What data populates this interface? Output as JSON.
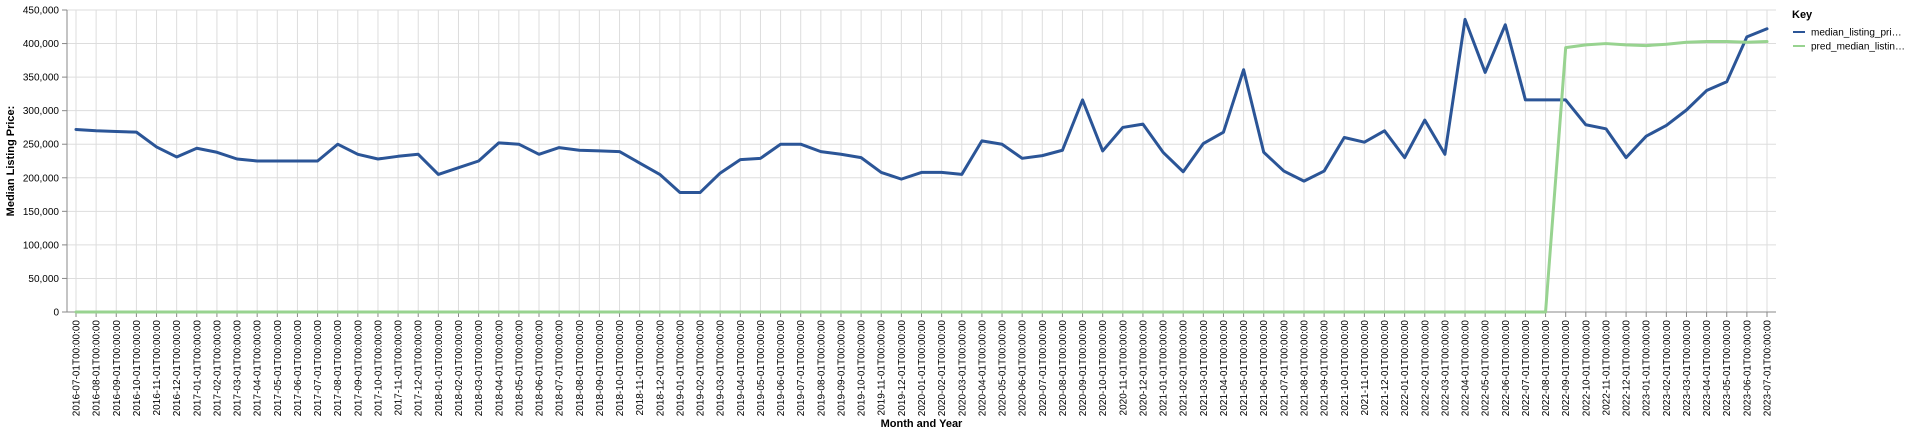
{
  "chart_data": {
    "type": "line",
    "xlabel": "Month and Year",
    "ylabel": "Median Listing Price:",
    "ylim": [
      0,
      450000
    ],
    "y_ticks": [
      0,
      50000,
      100000,
      150000,
      200000,
      250000,
      300000,
      350000,
      400000,
      450000
    ],
    "y_tick_labels": [
      "0",
      "50,000",
      "100,000",
      "150,000",
      "200,000",
      "250,000",
      "300,000",
      "350,000",
      "400,000",
      "450,000"
    ],
    "grid": true,
    "legend": {
      "title": "Key",
      "placement": "top-right"
    },
    "x": [
      "2016-07-01T00:00:00",
      "2016-08-01T00:00:00",
      "2016-09-01T00:00:00",
      "2016-10-01T00:00:00",
      "2016-11-01T00:00:00",
      "2016-12-01T00:00:00",
      "2017-01-01T00:00:00",
      "2017-02-01T00:00:00",
      "2017-03-01T00:00:00",
      "2017-04-01T00:00:00",
      "2017-05-01T00:00:00",
      "2017-06-01T00:00:00",
      "2017-07-01T00:00:00",
      "2017-08-01T00:00:00",
      "2017-09-01T00:00:00",
      "2017-10-01T00:00:00",
      "2017-11-01T00:00:00",
      "2017-12-01T00:00:00",
      "2018-01-01T00:00:00",
      "2018-02-01T00:00:00",
      "2018-03-01T00:00:00",
      "2018-04-01T00:00:00",
      "2018-05-01T00:00:00",
      "2018-06-01T00:00:00",
      "2018-07-01T00:00:00",
      "2018-08-01T00:00:00",
      "2018-09-01T00:00:00",
      "2018-10-01T00:00:00",
      "2018-11-01T00:00:00",
      "2018-12-01T00:00:00",
      "2019-01-01T00:00:00",
      "2019-02-01T00:00:00",
      "2019-03-01T00:00:00",
      "2019-04-01T00:00:00",
      "2019-05-01T00:00:00",
      "2019-06-01T00:00:00",
      "2019-07-01T00:00:00",
      "2019-08-01T00:00:00",
      "2019-09-01T00:00:00",
      "2019-10-01T00:00:00",
      "2019-11-01T00:00:00",
      "2019-12-01T00:00:00",
      "2020-01-01T00:00:00",
      "2020-02-01T00:00:00",
      "2020-03-01T00:00:00",
      "2020-04-01T00:00:00",
      "2020-05-01T00:00:00",
      "2020-06-01T00:00:00",
      "2020-07-01T00:00:00",
      "2020-08-01T00:00:00",
      "2020-09-01T00:00:00",
      "2020-10-01T00:00:00",
      "2020-11-01T00:00:00",
      "2020-12-01T00:00:00",
      "2021-01-01T00:00:00",
      "2021-02-01T00:00:00",
      "2021-03-01T00:00:00",
      "2021-04-01T00:00:00",
      "2021-05-01T00:00:00",
      "2021-06-01T00:00:00",
      "2021-07-01T00:00:00",
      "2021-08-01T00:00:00",
      "2021-09-01T00:00:00",
      "2021-10-01T00:00:00",
      "2021-11-01T00:00:00",
      "2021-12-01T00:00:00",
      "2022-01-01T00:00:00",
      "2022-02-01T00:00:00",
      "2022-03-01T00:00:00",
      "2022-04-01T00:00:00",
      "2022-05-01T00:00:00",
      "2022-06-01T00:00:00",
      "2022-07-01T00:00:00",
      "2022-08-01T00:00:00",
      "2022-09-01T00:00:00",
      "2022-10-01T00:00:00",
      "2022-11-01T00:00:00",
      "2022-12-01T00:00:00",
      "2023-01-01T00:00:00",
      "2023-02-01T00:00:00",
      "2023-03-01T00:00:00",
      "2023-04-01T00:00:00",
      "2023-05-01T00:00:00",
      "2023-06-01T00:00:00",
      "2023-07-01T00:00:00"
    ],
    "series": [
      {
        "name": "median_listing_pri…",
        "color": "#2b5597",
        "values": [
          272000,
          270000,
          269000,
          268000,
          246000,
          231000,
          244000,
          238000,
          228000,
          225000,
          225000,
          225000,
          225000,
          250000,
          235000,
          228000,
          232000,
          235000,
          205000,
          215000,
          225000,
          252000,
          250000,
          235000,
          245000,
          241000,
          240000,
          239000,
          222000,
          205000,
          178000,
          178000,
          207000,
          227000,
          229000,
          250000,
          250000,
          239000,
          235000,
          230000,
          208000,
          198000,
          208000,
          208000,
          205000,
          255000,
          250000,
          229000,
          233000,
          241000,
          316000,
          240000,
          275000,
          280000,
          238000,
          209000,
          251000,
          268000,
          361000,
          238000,
          210000,
          195000,
          210000,
          260000,
          253000,
          270000,
          230000,
          286000,
          235000,
          436000,
          357000,
          428000,
          316000,
          316000,
          316000,
          279000,
          273000,
          230000,
          262000,
          278000,
          301000,
          330000,
          343000,
          410000,
          422000
        ]
      },
      {
        "name": "pred_median_listin…",
        "color": "#98d390",
        "values": [
          0,
          0,
          0,
          0,
          0,
          0,
          0,
          0,
          0,
          0,
          0,
          0,
          0,
          0,
          0,
          0,
          0,
          0,
          0,
          0,
          0,
          0,
          0,
          0,
          0,
          0,
          0,
          0,
          0,
          0,
          0,
          0,
          0,
          0,
          0,
          0,
          0,
          0,
          0,
          0,
          0,
          0,
          0,
          0,
          0,
          0,
          0,
          0,
          0,
          0,
          0,
          0,
          0,
          0,
          0,
          0,
          0,
          0,
          0,
          0,
          0,
          0,
          0,
          0,
          0,
          0,
          0,
          0,
          0,
          0,
          0,
          0,
          0,
          0,
          394000,
          398000,
          400000,
          398000,
          397000,
          399000,
          402000,
          403000,
          403000,
          402000,
          403000
        ]
      }
    ]
  }
}
